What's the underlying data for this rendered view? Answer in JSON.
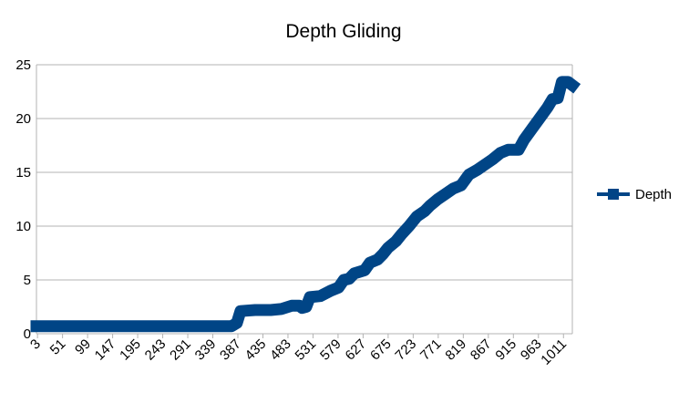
{
  "chart_data": {
    "type": "line",
    "title": "Depth Gliding",
    "xlabel": "",
    "ylabel": "",
    "ylim": [
      0,
      25
    ],
    "yticks": [
      0,
      5,
      10,
      15,
      20,
      25
    ],
    "x_tick_labels": [
      "3",
      "51",
      "99",
      "147",
      "195",
      "243",
      "291",
      "339",
      "387",
      "435",
      "483",
      "531",
      "579",
      "627",
      "675",
      "723",
      "771",
      "819",
      "867",
      "915",
      "963",
      "1011"
    ],
    "x_tick_start": 3,
    "x_tick_step": 48,
    "x_range": [
      1,
      1028
    ],
    "grid": true,
    "legend_position": "right",
    "series": [
      {
        "name": "Depth",
        "color": "#004586",
        "points": [
          [
            1,
            0.7
          ],
          [
            60,
            0.7
          ],
          [
            120,
            0.7
          ],
          [
            180,
            0.7
          ],
          [
            240,
            0.7
          ],
          [
            300,
            0.7
          ],
          [
            360,
            0.7
          ],
          [
            375,
            0.7
          ],
          [
            385,
            1.0
          ],
          [
            392,
            2.1
          ],
          [
            420,
            2.2
          ],
          [
            450,
            2.2
          ],
          [
            470,
            2.3
          ],
          [
            490,
            2.6
          ],
          [
            505,
            2.6
          ],
          [
            510,
            2.4
          ],
          [
            518,
            2.5
          ],
          [
            525,
            3.4
          ],
          [
            545,
            3.5
          ],
          [
            565,
            4.0
          ],
          [
            580,
            4.3
          ],
          [
            590,
            5.0
          ],
          [
            600,
            5.1
          ],
          [
            610,
            5.6
          ],
          [
            630,
            5.9
          ],
          [
            640,
            6.6
          ],
          [
            655,
            6.9
          ],
          [
            665,
            7.4
          ],
          [
            675,
            8.0
          ],
          [
            690,
            8.6
          ],
          [
            700,
            9.2
          ],
          [
            715,
            10.0
          ],
          [
            730,
            10.9
          ],
          [
            745,
            11.4
          ],
          [
            755,
            11.9
          ],
          [
            770,
            12.5
          ],
          [
            785,
            13.0
          ],
          [
            800,
            13.5
          ],
          [
            815,
            13.8
          ],
          [
            830,
            14.8
          ],
          [
            845,
            15.2
          ],
          [
            860,
            15.7
          ],
          [
            875,
            16.2
          ],
          [
            890,
            16.8
          ],
          [
            905,
            17.1
          ],
          [
            925,
            17.1
          ],
          [
            935,
            18.0
          ],
          [
            950,
            19.0
          ],
          [
            965,
            20.0
          ],
          [
            980,
            21.0
          ],
          [
            990,
            21.8
          ],
          [
            1000,
            21.9
          ],
          [
            1008,
            23.4
          ],
          [
            1020,
            23.4
          ],
          [
            1028,
            23.1
          ]
        ]
      }
    ]
  }
}
